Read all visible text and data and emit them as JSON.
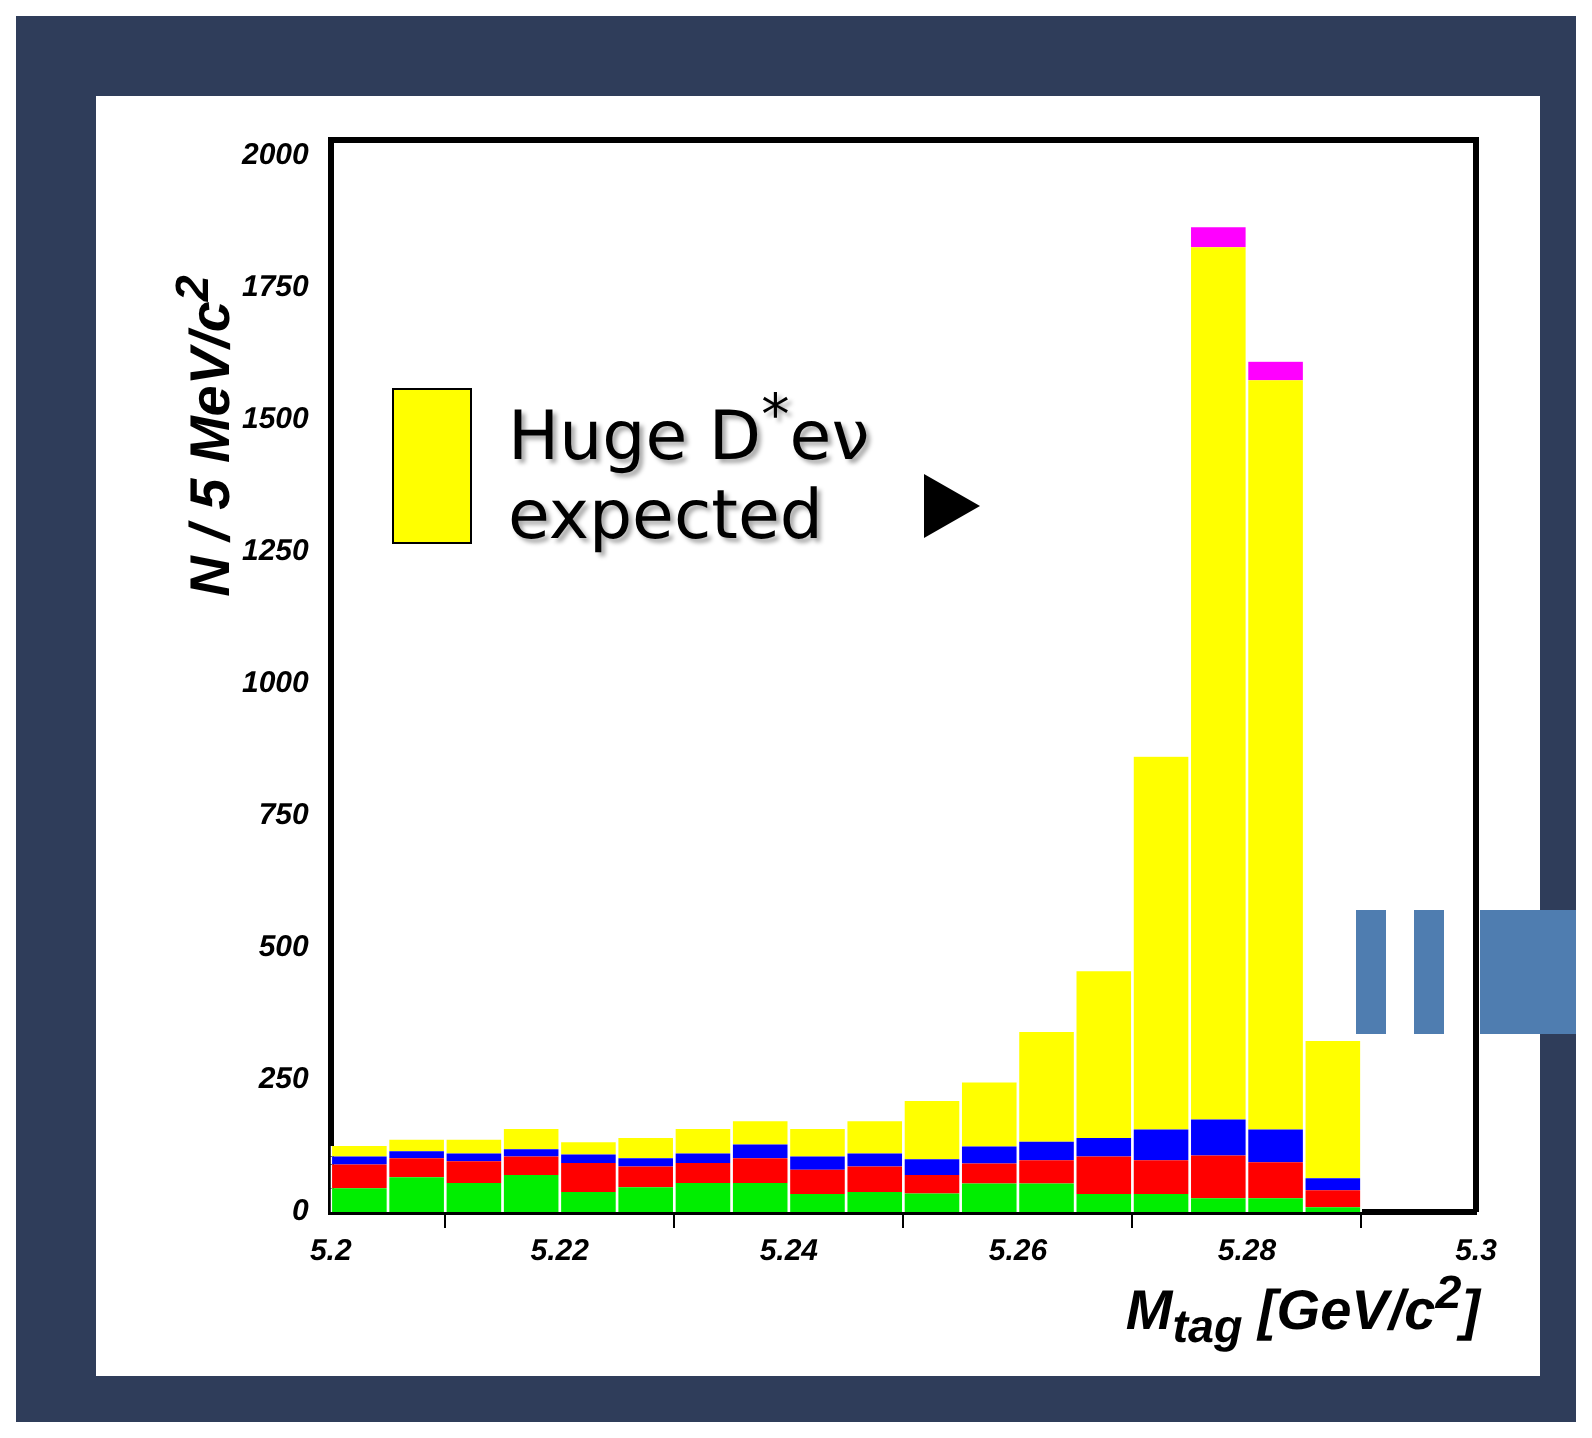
{
  "chart_data": {
    "type": "bar",
    "stacked": true,
    "xlabel": "M$_{tag}$ [GeV/c$^{2}$]",
    "ylabel": "N / 5 MeV/c$^{2}$",
    "x": [
      5.2025,
      5.2075,
      5.2125,
      5.2175,
      5.2225,
      5.2275,
      5.2325,
      5.2375,
      5.2425,
      5.2475,
      5.2525,
      5.2575,
      5.2625,
      5.2675,
      5.2725,
      5.2775,
      5.2825,
      5.2875
    ],
    "series": [
      {
        "color": "#00ee00",
        "values": [
          45,
          66,
          55,
          70,
          38,
          47,
          55,
          55,
          34,
          38,
          35,
          54,
          54,
          34,
          34,
          26,
          26,
          9
        ]
      },
      {
        "color": "#ff0000",
        "values": [
          45,
          36,
          41,
          35,
          55,
          39,
          38,
          47,
          46,
          48,
          35,
          38,
          44,
          71,
          64,
          81,
          68,
          32
        ]
      },
      {
        "color": "#0000ff",
        "values": [
          15,
          13,
          15,
          14,
          16,
          16,
          18,
          26,
          25,
          25,
          30,
          32,
          35,
          35,
          58,
          68,
          62,
          23
        ]
      },
      {
        "name": "Huge D$^{*}$eν expected",
        "color": "#ffff00",
        "values": [
          20,
          22,
          26,
          38,
          23,
          38,
          46,
          44,
          52,
          61,
          110,
          121,
          208,
          316,
          706,
          1652,
          1419,
          260
        ]
      },
      {
        "color": "#ff00ff",
        "values": [
          null,
          null,
          null,
          null,
          null,
          null,
          null,
          null,
          null,
          null,
          null,
          null,
          null,
          null,
          null,
          38,
          35,
          null
        ]
      }
    ],
    "xlim": [
      5.2,
      5.3
    ],
    "xticks": [
      5.2,
      {
        "value": 5.22,
        "label": "5.22"
      },
      {
        "value": 5.24,
        "label": "5.24"
      },
      {
        "value": 5.26,
        "label": "5.26"
      },
      {
        "value": 5.28,
        "label": "5.28"
      },
      5.3
    ],
    "ylim": [
      0,
      2030
    ],
    "yticks": [
      0,
      250,
      500,
      750,
      1000,
      1250,
      1500,
      1750,
      2000
    ],
    "grid": false,
    "legend": "top left"
  }
}
